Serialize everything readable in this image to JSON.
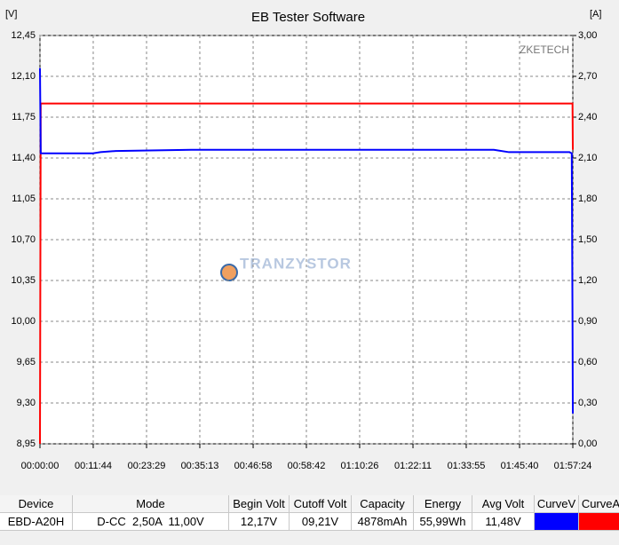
{
  "chart_data": {
    "type": "line",
    "title": "EB Tester Software",
    "y_label": "[V]",
    "y2_label": "[A]",
    "watermark": "ZKETECH",
    "watermark2": "TRANZYSTOR",
    "grid": true,
    "x": [
      0,
      10,
      60,
      700,
      800,
      1000,
      2000,
      3000,
      4000,
      5000,
      6000,
      6200,
      6900,
      7000,
      7030,
      7040,
      7044
    ],
    "xlim": [
      0,
      7044
    ],
    "xticks": [
      {
        "value": 0,
        "label": "00:00:00"
      },
      {
        "value": 704,
        "label": "00:11:44"
      },
      {
        "value": 1409,
        "label": "00:23:29"
      },
      {
        "value": 2113,
        "label": "00:35:13"
      },
      {
        "value": 2818,
        "label": "00:46:58"
      },
      {
        "value": 3522,
        "label": "00:58:42"
      },
      {
        "value": 4226,
        "label": "01:10:26"
      },
      {
        "value": 4931,
        "label": "01:22:11"
      },
      {
        "value": 5635,
        "label": "01:33:55"
      },
      {
        "value": 6340,
        "label": "01:45:40"
      },
      {
        "value": 7044,
        "label": "01:57:24"
      }
    ],
    "ylim": [
      8.95,
      12.45
    ],
    "yticks": [
      {
        "value": 8.95,
        "label": "8,95"
      },
      {
        "value": 9.3,
        "label": "9,30"
      },
      {
        "value": 9.65,
        "label": "9,65"
      },
      {
        "value": 10.0,
        "label": "10,00"
      },
      {
        "value": 10.35,
        "label": "10,35"
      },
      {
        "value": 10.7,
        "label": "10,70"
      },
      {
        "value": 11.05,
        "label": "11,05"
      },
      {
        "value": 11.4,
        "label": "11,40"
      },
      {
        "value": 11.75,
        "label": "11,75"
      },
      {
        "value": 12.1,
        "label": "12,10"
      },
      {
        "value": 12.45,
        "label": "12,45"
      }
    ],
    "y2lim": [
      0,
      3
    ],
    "y2ticks": [
      {
        "value": 0,
        "label": "0,00"
      },
      {
        "value": 0.3,
        "label": "0,30"
      },
      {
        "value": 0.6,
        "label": "0,60"
      },
      {
        "value": 0.9,
        "label": "0,90"
      },
      {
        "value": 1.2,
        "label": "1,20"
      },
      {
        "value": 1.5,
        "label": "1,50"
      },
      {
        "value": 1.8,
        "label": "1,80"
      },
      {
        "value": 2.1,
        "label": "2,10"
      },
      {
        "value": 2.4,
        "label": "2,40"
      },
      {
        "value": 2.7,
        "label": "2,70"
      },
      {
        "value": 3,
        "label": "3,00"
      }
    ],
    "series": [
      {
        "name": "CurveV",
        "color": "#0000ff",
        "values": [
          12.17,
          11.44,
          11.44,
          11.44,
          11.45,
          11.46,
          11.47,
          11.47,
          11.47,
          11.47,
          11.47,
          11.45,
          11.45,
          11.45,
          11.44,
          10.0,
          9.21
        ]
      },
      {
        "name": "CurveA",
        "color": "#ff0000",
        "axis": "y2",
        "values": [
          0,
          2.5,
          2.5,
          2.5,
          2.5,
          2.5,
          2.5,
          2.5,
          2.5,
          2.5,
          2.5,
          2.5,
          2.5,
          2.5,
          2.5,
          2.5,
          2.16
        ]
      }
    ]
  },
  "table": {
    "columns": [
      "Device",
      "Mode",
      "Begin Volt",
      "Cutoff Volt",
      "Capacity",
      "Energy",
      "Avg Volt",
      "CurveV",
      "CurveA"
    ],
    "rows": [
      [
        "EBD-A20H",
        "D-CC  2,50A  11,00V",
        "12,17V",
        "09,21V",
        "4878mAh",
        "55,99Wh",
        "11,48V"
      ]
    ]
  }
}
